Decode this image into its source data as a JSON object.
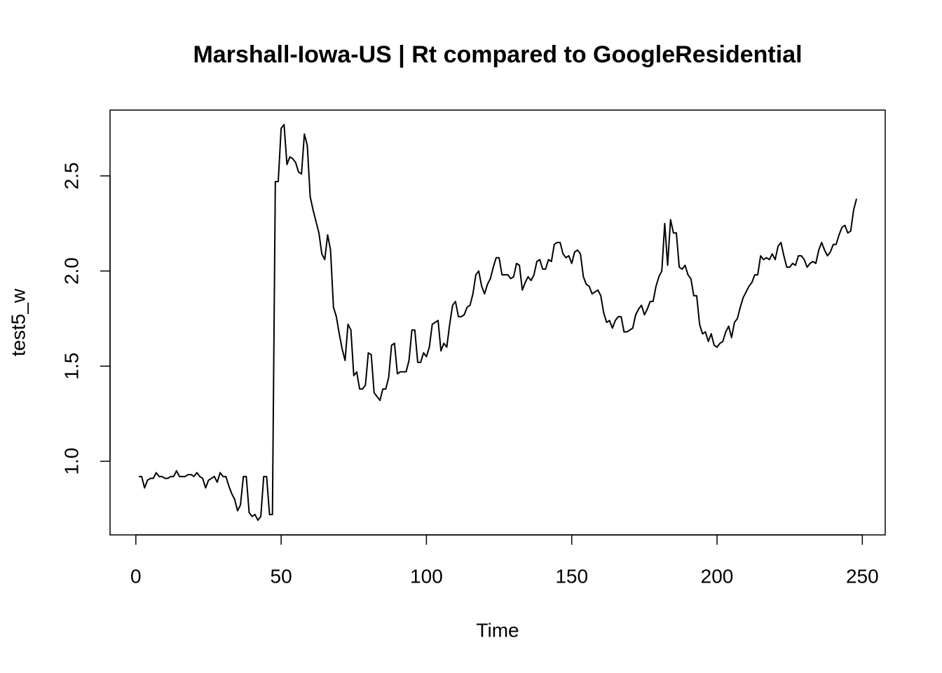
{
  "chart_data": {
    "type": "line",
    "title": "Marshall-Iowa-US | Rt compared to GoogleResidential",
    "x_label": "Time",
    "y_label": "test5_w",
    "x": [
      1,
      2,
      3,
      4,
      5,
      6,
      7,
      8,
      9,
      10,
      11,
      12,
      13,
      14,
      15,
      16,
      17,
      18,
      19,
      20,
      21,
      22,
      23,
      24,
      25,
      26,
      27,
      28,
      29,
      30,
      31,
      32,
      33,
      34,
      35,
      36,
      37,
      38,
      39,
      40,
      41,
      42,
      43,
      44,
      45,
      46,
      47,
      48,
      49,
      50,
      51,
      52,
      53,
      54,
      55,
      56,
      57,
      58,
      59,
      60,
      61,
      62,
      63,
      64,
      65,
      66,
      67,
      68,
      69,
      70,
      71,
      72,
      73,
      74,
      75,
      76,
      77,
      78,
      79,
      80,
      81,
      82,
      83,
      84,
      85,
      86,
      87,
      88,
      89,
      90,
      91,
      92,
      93,
      94,
      95,
      96,
      97,
      98,
      99,
      100,
      101,
      102,
      103,
      104,
      105,
      106,
      107,
      108,
      109,
      110,
      111,
      112,
      113,
      114,
      115,
      116,
      117,
      118,
      119,
      120,
      121,
      122,
      123,
      124,
      125,
      126,
      127,
      128,
      129,
      130,
      131,
      132,
      133,
      134,
      135,
      136,
      137,
      138,
      139,
      140,
      141,
      142,
      143,
      144,
      145,
      146,
      147,
      148,
      149,
      150,
      151,
      152,
      153,
      154,
      155,
      156,
      157,
      158,
      159,
      160,
      161,
      162,
      163,
      164,
      165,
      166,
      167,
      168,
      169,
      170,
      171,
      172,
      173,
      174,
      175,
      176,
      177,
      178,
      179,
      180,
      181,
      182,
      183,
      184,
      185,
      186,
      187,
      188,
      189,
      190,
      191,
      192,
      193,
      194,
      195,
      196,
      197,
      198,
      199,
      200,
      201,
      202,
      203,
      204,
      205,
      206,
      207,
      208,
      209,
      210,
      211,
      212,
      213,
      214,
      215,
      216,
      217,
      218,
      219,
      220,
      221,
      222,
      223,
      224,
      225,
      226,
      227,
      228,
      229,
      230,
      231,
      232,
      233,
      234,
      235,
      236,
      237,
      238,
      239,
      240,
      241,
      242,
      243,
      244,
      245,
      246,
      247,
      248
    ],
    "values": [
      0.92,
      0.92,
      0.86,
      0.9,
      0.91,
      0.91,
      0.94,
      0.92,
      0.92,
      0.91,
      0.91,
      0.92,
      0.92,
      0.95,
      0.92,
      0.92,
      0.92,
      0.93,
      0.93,
      0.92,
      0.94,
      0.92,
      0.91,
      0.86,
      0.9,
      0.91,
      0.92,
      0.89,
      0.94,
      0.92,
      0.92,
      0.87,
      0.83,
      0.8,
      0.74,
      0.77,
      0.92,
      0.92,
      0.73,
      0.71,
      0.72,
      0.69,
      0.71,
      0.92,
      0.92,
      0.72,
      0.72,
      2.47,
      2.47,
      2.75,
      2.77,
      2.56,
      2.6,
      2.59,
      2.57,
      2.52,
      2.51,
      2.72,
      2.66,
      2.39,
      2.32,
      2.26,
      2.2,
      2.09,
      2.06,
      2.19,
      2.11,
      1.81,
      1.76,
      1.67,
      1.59,
      1.53,
      1.72,
      1.69,
      1.45,
      1.47,
      1.38,
      1.38,
      1.4,
      1.57,
      1.56,
      1.36,
      1.34,
      1.32,
      1.38,
      1.38,
      1.44,
      1.61,
      1.62,
      1.46,
      1.47,
      1.47,
      1.47,
      1.53,
      1.69,
      1.69,
      1.52,
      1.52,
      1.57,
      1.55,
      1.6,
      1.72,
      1.73,
      1.74,
      1.58,
      1.62,
      1.6,
      1.72,
      1.82,
      1.84,
      1.76,
      1.76,
      1.77,
      1.81,
      1.82,
      1.88,
      1.98,
      2.0,
      1.92,
      1.88,
      1.93,
      1.96,
      2.02,
      2.07,
      2.07,
      1.98,
      1.98,
      1.98,
      1.96,
      1.97,
      2.04,
      2.03,
      1.9,
      1.94,
      1.97,
      1.95,
      1.98,
      2.05,
      2.06,
      2.01,
      2.01,
      2.06,
      2.05,
      2.14,
      2.15,
      2.15,
      2.09,
      2.07,
      2.08,
      2.04,
      2.1,
      2.11,
      2.09,
      1.97,
      1.93,
      1.92,
      1.88,
      1.89,
      1.9,
      1.87,
      1.78,
      1.73,
      1.74,
      1.7,
      1.74,
      1.76,
      1.76,
      1.68,
      1.68,
      1.69,
      1.7,
      1.77,
      1.8,
      1.82,
      1.77,
      1.8,
      1.84,
      1.84,
      1.92,
      1.97,
      2.0,
      2.25,
      2.03,
      2.27,
      2.2,
      2.2,
      2.02,
      2.01,
      2.03,
      1.98,
      1.96,
      1.87,
      1.87,
      1.72,
      1.67,
      1.68,
      1.63,
      1.67,
      1.61,
      1.6,
      1.62,
      1.63,
      1.68,
      1.71,
      1.65,
      1.73,
      1.75,
      1.81,
      1.86,
      1.89,
      1.92,
      1.94,
      1.98,
      1.98,
      2.08,
      2.06,
      2.07,
      2.06,
      2.09,
      2.06,
      2.13,
      2.15,
      2.08,
      2.02,
      2.02,
      2.04,
      2.03,
      2.08,
      2.08,
      2.06,
      2.02,
      2.04,
      2.05,
      2.04,
      2.11,
      2.15,
      2.11,
      2.08,
      2.1,
      2.14,
      2.14,
      2.19,
      2.23,
      2.24,
      2.2,
      2.21,
      2.32,
      2.38
    ],
    "color": "#000000",
    "xlim": [
      -8.88,
      257.88
    ],
    "xticks": [
      0,
      50,
      100,
      150,
      200,
      250
    ],
    "ylim": [
      0.613,
      2.846
    ],
    "yticks": [
      {
        "value": 1,
        "label": "1.0"
      },
      1.5,
      {
        "value": 2,
        "label": "2.0"
      },
      2.5
    ],
    "grid": false
  }
}
